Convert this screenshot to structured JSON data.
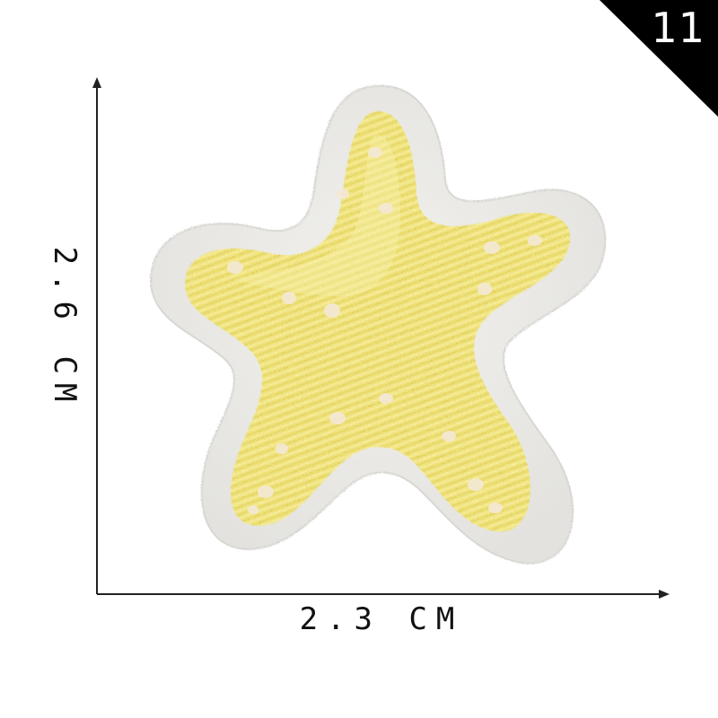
{
  "badge": {
    "number": "11"
  },
  "dimensions": {
    "height_label": "2.6 CM",
    "width_label": "2.3 CM"
  },
  "colors": {
    "badge_background": "#000000",
    "felt_border": "#ecebe8",
    "embroidery_yellow": "#efe27a",
    "embroidery_highlight": "#f7ee9e",
    "spot_color": "#f4e9d6",
    "axis_color": "#222222"
  },
  "product": {
    "icon": "starfish-patch-icon"
  }
}
